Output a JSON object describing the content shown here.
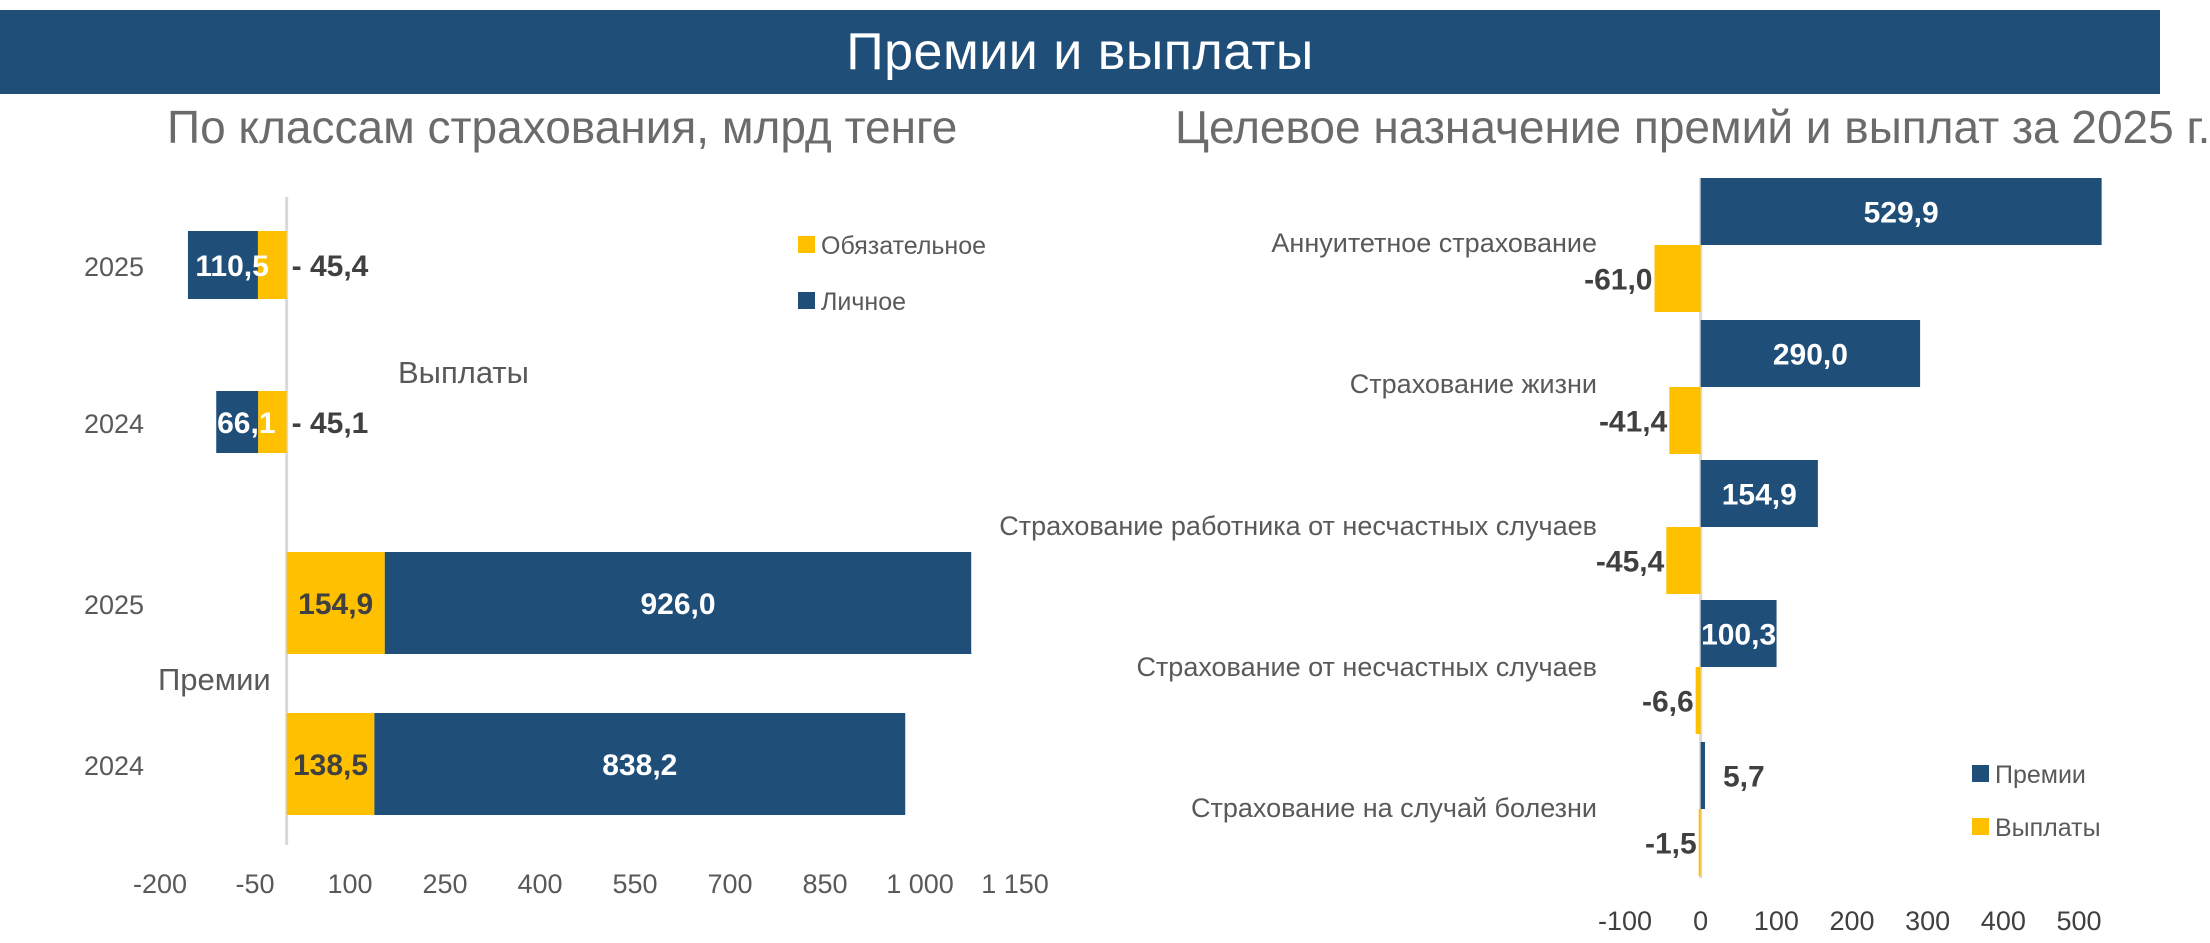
{
  "header": {
    "title": "Премии и выплаты"
  },
  "colors": {
    "banner": "#1f4e79",
    "personal": "#1f4e79",
    "mandatory": "#ffc000",
    "axis": "#d9d9d9",
    "label_dark": "#404040",
    "label_gray": "#595959"
  },
  "chart_data": [
    {
      "type": "bar",
      "orientation": "horizontal",
      "stacked": true,
      "title": "По классам страхования, млрд тенге",
      "groups": [
        {
          "name": "Выплаты",
          "categories": [
            "2025",
            "2024"
          ]
        },
        {
          "name": "Премии",
          "categories": [
            "2025",
            "2024"
          ]
        }
      ],
      "categories": [
        "2025",
        "2024",
        "2025",
        "2024"
      ],
      "series": [
        {
          "name": "Обязательное",
          "values": [
            -45.4,
            -45.1,
            154.9,
            138.5
          ],
          "labels": [
            "- 45,4",
            "- 45,1",
            "154,9",
            "138,5"
          ]
        },
        {
          "name": "Личное",
          "values": [
            -110.5,
            -66.1,
            926.0,
            838.2
          ],
          "labels": [
            "- 110,5",
            "- 66,1",
            "926,0",
            "838,2"
          ]
        }
      ],
      "xlim": [
        -200,
        1150
      ],
      "xticks": [
        -200,
        -50,
        100,
        250,
        400,
        550,
        700,
        850,
        1000,
        1150
      ],
      "xtick_labels": [
        "-200",
        "-50",
        "100",
        "250",
        "400",
        "550",
        "700",
        "850",
        "1 000",
        "1 150"
      ],
      "legend_position": "top-right"
    },
    {
      "type": "bar",
      "orientation": "horizontal",
      "title": "Целевое назначение премий и выплат за 2025 г.",
      "categories": [
        "Аннуитетное страхование",
        "Страхование жизни",
        "Страхование работника от несчастных случаев",
        "Страхование от несчастных случаев",
        "Страхование на случай болезни"
      ],
      "series": [
        {
          "name": "Премии",
          "values": [
            529.9,
            290.0,
            154.9,
            100.3,
            5.7
          ],
          "labels": [
            "529,9",
            "290,0",
            "154,9",
            "100,3",
            "5,7"
          ]
        },
        {
          "name": "Выплаты",
          "values": [
            -61.0,
            -41.4,
            -45.4,
            -6.6,
            -1.5
          ],
          "labels": [
            "-61,0",
            "-41,4",
            "-45,4",
            "-6,6",
            "-1,5"
          ]
        }
      ],
      "xlim": [
        -100,
        530
      ],
      "xticks": [
        -100,
        0,
        100,
        200,
        300,
        400,
        500
      ],
      "xtick_labels": [
        "-100",
        "0",
        "100",
        "200",
        "300",
        "400",
        "500"
      ],
      "legend_position": "bottom-right"
    }
  ]
}
